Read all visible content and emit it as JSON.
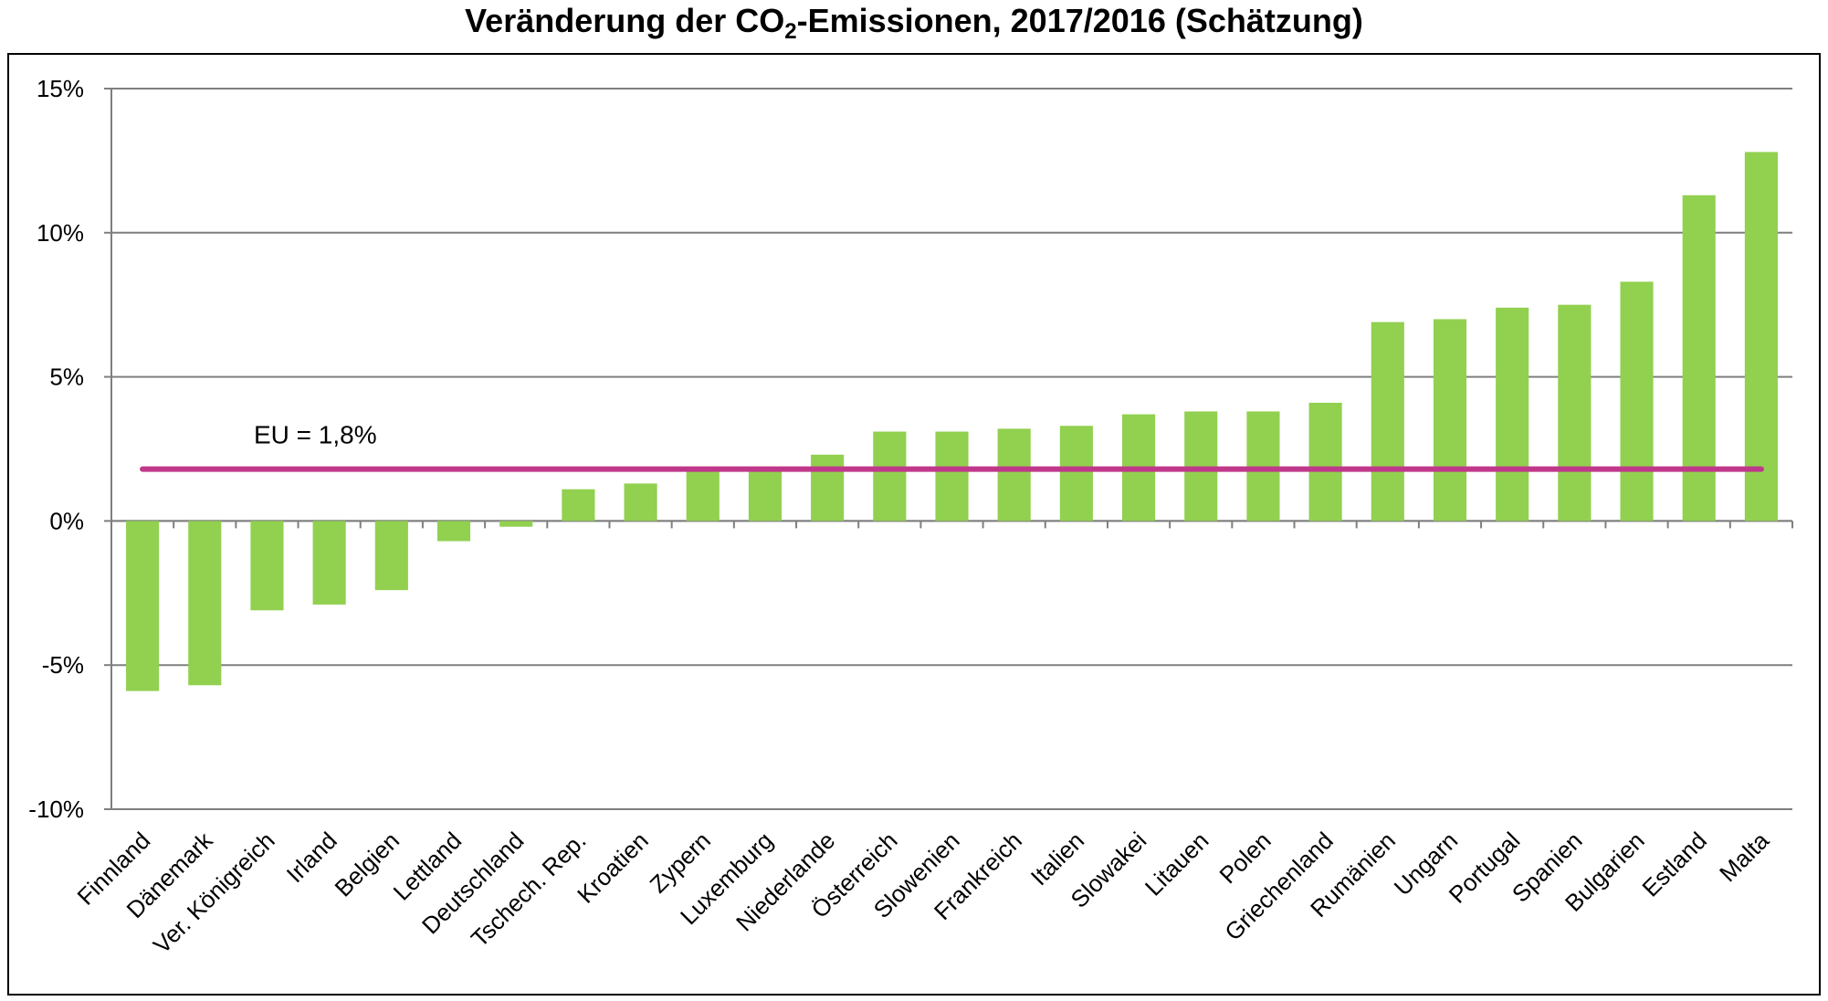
{
  "title": {
    "prefix": "Veränderung der CO",
    "subscript": "2",
    "suffix": "-Emissionen, 2017/2016 (Schätzung)"
  },
  "colors": {
    "bar": "#92d050",
    "eu_line": "#c0388a",
    "grid": "#7f7f7f",
    "axis": "#7f7f7f"
  },
  "chart_data": {
    "type": "bar",
    "categories": [
      "Finnland",
      "Dänemark",
      "Ver. Königreich",
      "Irland",
      "Belgien",
      "Lettland",
      "Deutschland",
      "Tschech. Rep.",
      "Kroatien",
      "Zypern",
      "Luxemburg",
      "Niederlande",
      "Österreich",
      "Slowenien",
      "Frankreich",
      "Italien",
      "Slowakei",
      "Litauen",
      "Polen",
      "Griechenland",
      "Rumänien",
      "Ungarn",
      "Portugal",
      "Spanien",
      "Bulgarien",
      "Estland",
      "Malta"
    ],
    "values": [
      -5.9,
      -5.7,
      -3.1,
      -2.9,
      -2.4,
      -0.7,
      -0.2,
      1.1,
      1.3,
      1.8,
      1.8,
      2.3,
      3.1,
      3.1,
      3.2,
      3.3,
      3.7,
      3.8,
      3.8,
      4.1,
      6.9,
      7.0,
      7.4,
      7.5,
      8.3,
      11.3,
      12.8
    ],
    "ylim": [
      -10,
      15
    ],
    "yticks": [
      15,
      10,
      5,
      0,
      -5,
      -10
    ],
    "ytick_labels": [
      "15%",
      "10%",
      "5%",
      "0%",
      "-5%",
      "-10%"
    ],
    "reference_line": {
      "value": 1.8,
      "label": "EU = 1,8%"
    },
    "grid": true,
    "legend": "none"
  }
}
